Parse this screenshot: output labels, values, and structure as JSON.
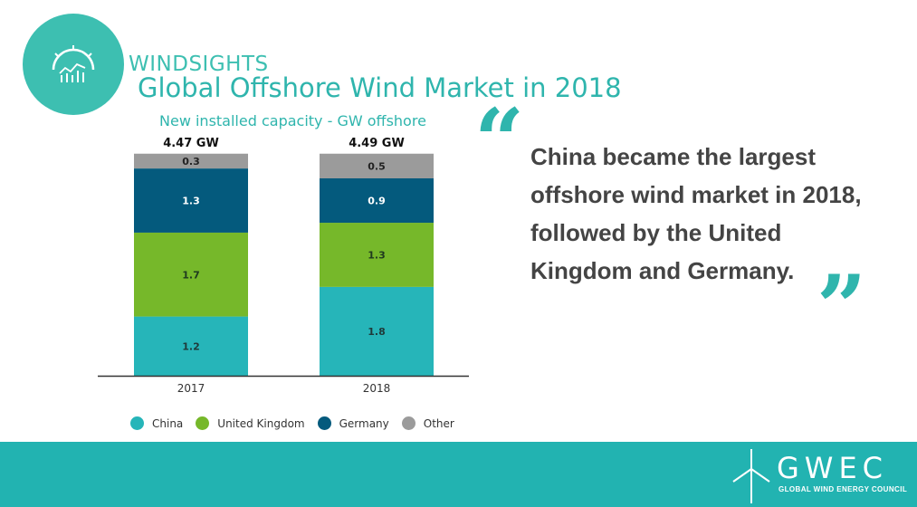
{
  "brand": {
    "name": "WINDSIGHTS"
  },
  "quote": {
    "text": "China became the largest offshore wind market in 2018, followed by the United Kingdom and Germany.",
    "open_mark": "“",
    "close_mark": "”"
  },
  "footer": {
    "org_name": "GWEC",
    "org_full": "GLOBAL WIND ENERGY COUNCIL",
    "logo_icon": "wind-turbine-icon"
  },
  "logo_icon": "chart-gauge-icon",
  "colors": {
    "China": "#26b5b9",
    "United Kingdom": "#76b82a",
    "Germany": "#045a7d",
    "Other": "#9b9b9b",
    "accent": "#2fb5ad",
    "footer": "#22b3b1"
  },
  "chart_data": {
    "type": "bar",
    "stacked": true,
    "title": "Global Offshore Wind Market in 2018",
    "subtitle": "New installed capacity - GW offshore",
    "categories": [
      "2017",
      "2018"
    ],
    "totals": [
      "4.47 GW",
      "4.49 GW"
    ],
    "series": [
      {
        "name": "China",
        "values": [
          1.2,
          1.8
        ]
      },
      {
        "name": "United Kingdom",
        "values": [
          1.7,
          1.3
        ]
      },
      {
        "name": "Germany",
        "values": [
          1.3,
          0.9
        ]
      },
      {
        "name": "Other",
        "values": [
          0.3,
          0.5
        ]
      }
    ],
    "legend_position": "bottom",
    "grid": false
  }
}
